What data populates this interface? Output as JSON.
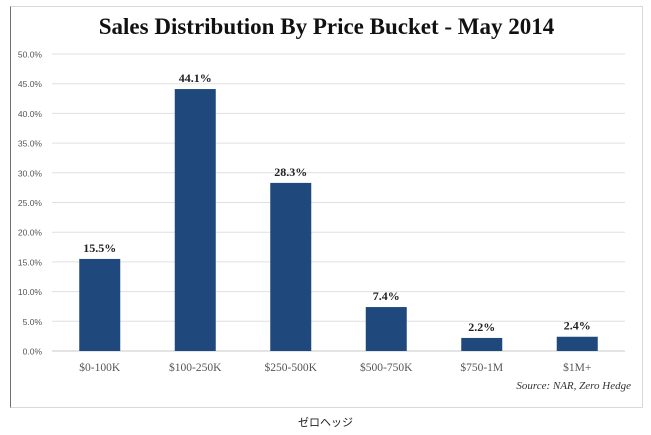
{
  "chart_data": {
    "type": "bar",
    "title": "Sales Distribution By Price Bucket - May 2014",
    "xlabel": "",
    "ylabel": "",
    "categories": [
      "$0-100K",
      "$100-250K",
      "$250-500K",
      "$500-750K",
      "$750-1M",
      "$1M+"
    ],
    "values": [
      15.5,
      44.1,
      28.3,
      7.4,
      2.2,
      2.4
    ],
    "data_labels": [
      "15.5%",
      "44.1%",
      "28.3%",
      "7.4%",
      "2.2%",
      "2.4%"
    ],
    "ylim": [
      0,
      50
    ],
    "yticks": [
      0,
      5,
      10,
      15,
      20,
      25,
      30,
      35,
      40,
      45,
      50
    ],
    "ytick_labels": [
      "0.0%",
      "5.0%",
      "10.0%",
      "15.0%",
      "20.0%",
      "25.0%",
      "30.0%",
      "35.0%",
      "40.0%",
      "45.0%",
      "50.0%"
    ],
    "grid": true,
    "legend": "none",
    "bar_color": "#1f497d",
    "annotations": [
      "Source: NAR, Zero Hedge"
    ]
  },
  "source_note": "Source: NAR, Zero Hedge",
  "footer_caption": "ゼロヘッジ"
}
